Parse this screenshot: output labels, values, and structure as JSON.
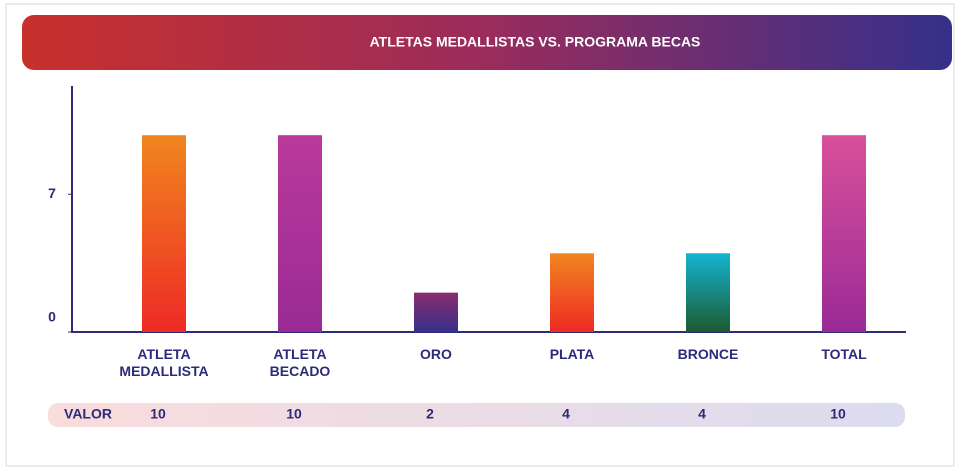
{
  "chart_data": {
    "type": "bar",
    "title": "ATLETAS MEDALLISTAS VS. PROGRAMA BECAS",
    "categories": [
      "ATLETA MEDALLISTA",
      "ATLETA BECADO",
      "ORO",
      "PLATA",
      "BRONCE",
      "TOTAL"
    ],
    "values": [
      10,
      10,
      2,
      4,
      4,
      10
    ],
    "colors": [
      [
        "#f0861f",
        "#ee2a24"
      ],
      [
        "#b93a9a",
        "#9a2a96"
      ],
      [
        "#8a2c6e",
        "#35308a"
      ],
      [
        "#f0861f",
        "#ee2a24"
      ],
      [
        "#14b4d2",
        "#1d5b2e"
      ],
      [
        "#d8509a",
        "#9a2a96"
      ]
    ],
    "ylim": [
      0,
      12.5
    ],
    "yticks": [
      0,
      7
    ],
    "value_row_label": "VALOR"
  }
}
